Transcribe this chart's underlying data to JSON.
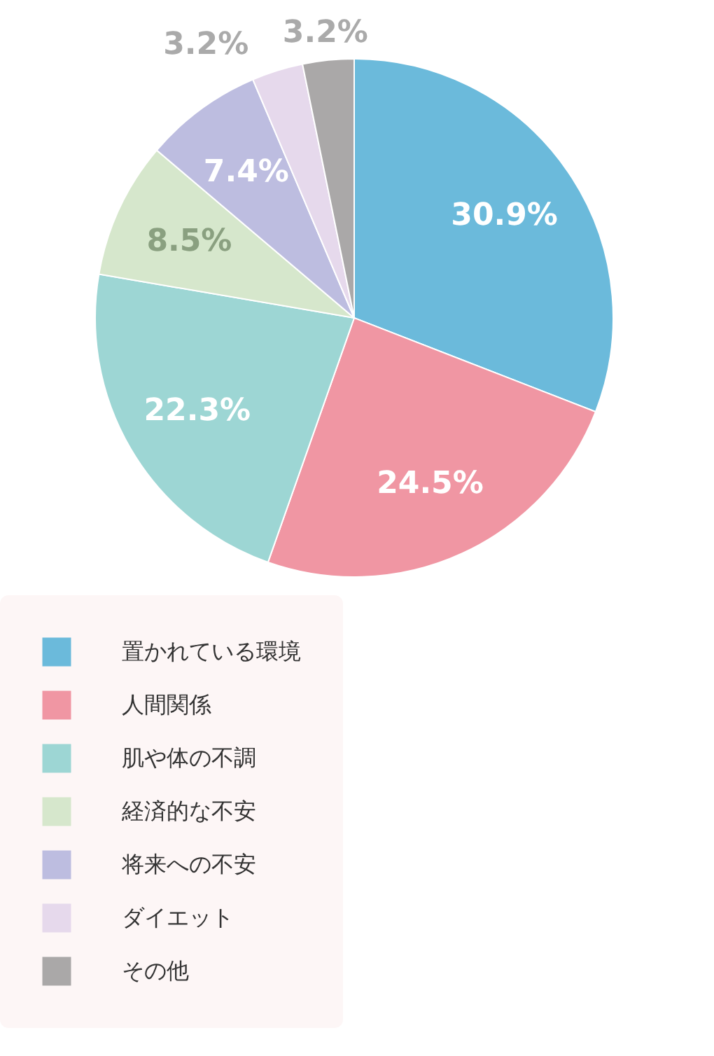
{
  "chart_data": {
    "type": "pie",
    "categories": [
      "置かれている環境",
      "人間関係",
      "肌や体の不調",
      "経済的な不安",
      "将来への不安",
      "ダイエット",
      "その他"
    ],
    "values": [
      30.9,
      24.5,
      22.3,
      8.5,
      7.4,
      3.2,
      3.2
    ],
    "colors": [
      "#6bbadb",
      "#f096a3",
      "#9dd6d4",
      "#d6e7cc",
      "#bdbde0",
      "#e6d9ec",
      "#aaa8a8"
    ],
    "value_labels": [
      "30.9%",
      "24.5%",
      "22.3%",
      "8.5%",
      "7.4%",
      "3.2%",
      "3.2%"
    ],
    "legend": "bottom"
  }
}
